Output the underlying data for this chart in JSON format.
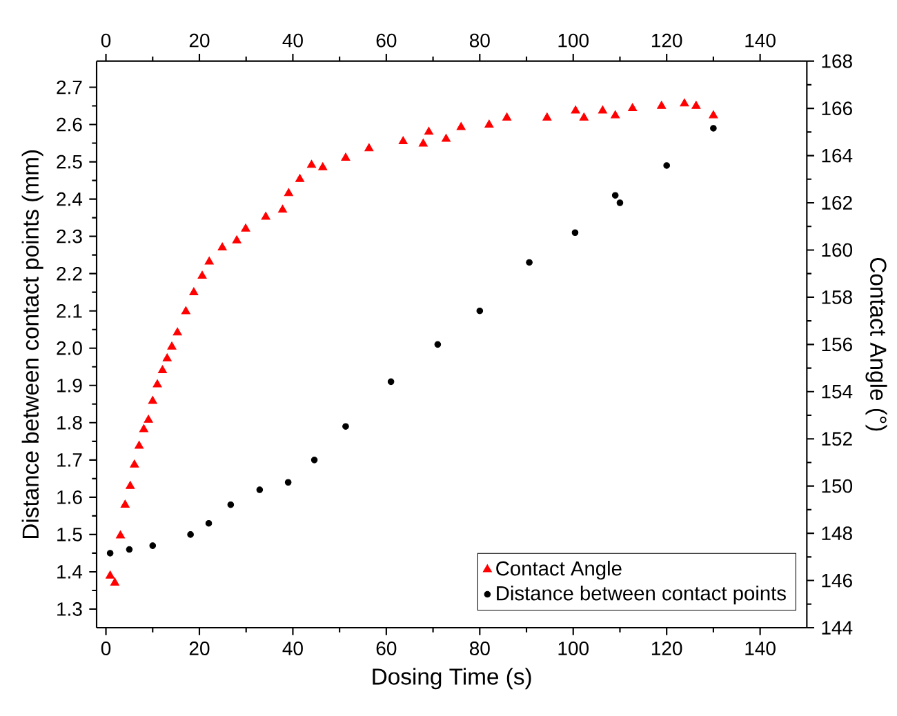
{
  "chart_data": {
    "type": "scatter",
    "xlabel": "Dosing Time (s)",
    "ylabel": "Distance between contact points (mm)",
    "y2label": "Contact  Angle (°)",
    "xlim": [
      -2,
      150
    ],
    "xticks": [
      0,
      20,
      40,
      60,
      80,
      100,
      120,
      140
    ],
    "x2lim": [
      -2,
      150
    ],
    "x2ticks": [
      0,
      20,
      40,
      60,
      80,
      100,
      120,
      140
    ],
    "ylim": [
      1.25,
      2.77
    ],
    "yticks": [
      1.3,
      1.4,
      1.5,
      1.6,
      1.7,
      1.8,
      1.9,
      {
        "value": 2.0,
        "label": "2.0"
      },
      2.1,
      2.2,
      2.3,
      2.4,
      2.5,
      2.6,
      2.7
    ],
    "y2lim": [
      144,
      168
    ],
    "y2ticks": [
      144,
      146,
      148,
      150,
      152,
      154,
      156,
      158,
      160,
      162,
      164,
      166,
      168
    ],
    "legend": "bottom right",
    "series": [
      {
        "name": "Contact Angle",
        "color": "#ff0000",
        "marker": "triangle",
        "axis": "y2",
        "x": [
          0.9,
          1.9,
          3.1,
          4.1,
          5.2,
          6.1,
          7.1,
          8.1,
          9.1,
          10,
          11,
          12.1,
          13.1,
          14.1,
          15.3,
          17.1,
          18.8,
          20.6,
          22.1,
          24.9,
          28,
          29.9,
          34.2,
          37.8,
          39.1,
          41.5,
          44,
          46.4,
          51.3,
          56.3,
          63.6,
          67.9,
          69.1,
          72.8,
          76,
          82,
          85.8,
          94.4,
          100.5,
          102.3,
          106.3,
          109,
          112.7,
          118.9,
          123.8,
          126.3,
          130
        ],
        "values": [
          146.2,
          145.9,
          147.9,
          149.2,
          150.0,
          150.9,
          151.7,
          152.4,
          152.8,
          153.6,
          154.3,
          154.9,
          155.4,
          155.9,
          156.5,
          157.4,
          158.2,
          158.9,
          159.5,
          160.1,
          160.4,
          160.9,
          161.4,
          161.7,
          162.4,
          163.0,
          163.6,
          163.5,
          163.9,
          164.3,
          164.6,
          164.5,
          165.0,
          164.7,
          165.2,
          165.3,
          165.6,
          165.6,
          165.9,
          165.6,
          165.9,
          165.7,
          166.0,
          166.1,
          166.2,
          166.1,
          165.7
        ]
      },
      {
        "name": "Distance between contact points",
        "color": "#000000",
        "marker": "circle",
        "x": [
          0.9,
          5,
          10,
          18.1,
          22,
          26.7,
          32.9,
          39,
          44.6,
          51.3,
          61,
          71,
          80,
          90.6,
          100.4,
          109,
          110,
          120,
          130
        ],
        "values": [
          1.45,
          1.46,
          1.47,
          1.5,
          1.53,
          1.58,
          1.62,
          1.64,
          1.7,
          1.79,
          1.91,
          2.01,
          2.1,
          2.23,
          2.31,
          2.41,
          2.39,
          2.49,
          2.59
        ]
      }
    ]
  }
}
